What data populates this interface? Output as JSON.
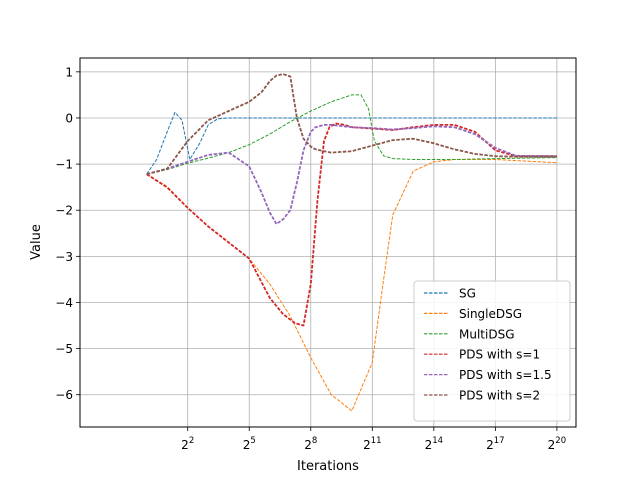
{
  "chart_data": {
    "type": "line",
    "title": "",
    "xlabel": "Iterations",
    "ylabel": "Value",
    "x_scale": "log2",
    "xlim": [
      0.105,
      2000000
    ],
    "ylim": [
      -6.7,
      1.3
    ],
    "x_ticks": [
      {
        "value": 4,
        "base": "2",
        "exp": "2"
      },
      {
        "value": 32,
        "base": "2",
        "exp": "5"
      },
      {
        "value": 256,
        "base": "2",
        "exp": "8"
      },
      {
        "value": 2048,
        "base": "2",
        "exp": "11"
      },
      {
        "value": 16384,
        "base": "2",
        "exp": "14"
      },
      {
        "value": 131072,
        "base": "2",
        "exp": "17"
      },
      {
        "value": 1048576,
        "base": "2",
        "exp": "20"
      }
    ],
    "y_ticks": [
      1,
      0,
      -1,
      -2,
      -3,
      -4,
      -5,
      -6
    ],
    "y_tick_labels": [
      "1",
      "0",
      "−1",
      "−2",
      "−3",
      "−4",
      "−5",
      "−6"
    ],
    "grid": true,
    "legend_position": "lower right",
    "series": [
      {
        "name": "SG",
        "color": "#1f77b4",
        "style": "dashed",
        "x": [
          1,
          1.4,
          2,
          2.6,
          3.3,
          4.3,
          6,
          8,
          11,
          16,
          32,
          128,
          1024,
          16384,
          131072,
          1048576
        ],
        "y": [
          -1.22,
          -0.9,
          -0.3,
          0.12,
          -0.05,
          -0.9,
          -0.55,
          -0.15,
          -0.02,
          0.0,
          0.0,
          0.0,
          0.0,
          0.0,
          0.0,
          0.0
        ]
      },
      {
        "name": "SingleDSG",
        "color": "#ff7f0e",
        "style": "dashed",
        "x": [
          1,
          2,
          4,
          8,
          16,
          32,
          64,
          128,
          256,
          512,
          1024,
          2048,
          3000,
          4096,
          8192,
          16384,
          32768,
          131072,
          1048576
        ],
        "y": [
          -1.22,
          -1.52,
          -1.95,
          -2.35,
          -2.7,
          -3.05,
          -3.6,
          -4.3,
          -5.2,
          -6.0,
          -6.35,
          -5.3,
          -3.5,
          -2.1,
          -1.15,
          -0.95,
          -0.9,
          -0.9,
          -0.97
        ]
      },
      {
        "name": "MultiDSG",
        "color": "#2ca02c",
        "style": "dashed",
        "x": [
          1,
          2,
          4,
          8,
          16,
          32,
          64,
          128,
          256,
          512,
          1024,
          1400,
          1800,
          2200,
          3000,
          4096,
          8192,
          16384,
          32768,
          131072,
          1048576
        ],
        "y": [
          -1.22,
          -1.12,
          -0.98,
          -0.87,
          -0.75,
          -0.58,
          -0.35,
          -0.08,
          0.15,
          0.35,
          0.5,
          0.5,
          0.2,
          -0.5,
          -0.82,
          -0.88,
          -0.9,
          -0.9,
          -0.9,
          -0.88,
          -0.86
        ]
      },
      {
        "name": "PDS with s=1",
        "color": "#d62728",
        "style": "dashed",
        "x": [
          1,
          2,
          4,
          8,
          16,
          32,
          64,
          100,
          150,
          200,
          256,
          320,
          400,
          480,
          600,
          800,
          1024,
          2048,
          4096,
          8192,
          16384,
          32768,
          65536,
          131072,
          262144,
          1048576
        ],
        "y": [
          -1.22,
          -1.5,
          -1.95,
          -2.35,
          -2.7,
          -3.05,
          -3.9,
          -4.25,
          -4.45,
          -4.5,
          -3.6,
          -1.8,
          -0.5,
          -0.2,
          -0.12,
          -0.15,
          -0.2,
          -0.23,
          -0.26,
          -0.2,
          -0.15,
          -0.15,
          -0.3,
          -0.7,
          -0.83,
          -0.83
        ]
      },
      {
        "name": "PDS with s=1.5",
        "color": "#9467bd",
        "style": "dashed",
        "x": [
          1,
          2,
          4,
          8,
          16,
          32,
          48,
          64,
          80,
          100,
          128,
          160,
          200,
          256,
          300,
          400,
          512,
          1024,
          2048,
          4096,
          8192,
          16384,
          32768,
          65536,
          131072,
          262144,
          1048576
        ],
        "y": [
          -1.22,
          -1.1,
          -0.95,
          -0.8,
          -0.75,
          -1.05,
          -1.6,
          -2.05,
          -2.3,
          -2.2,
          -2.0,
          -1.4,
          -0.7,
          -0.3,
          -0.2,
          -0.15,
          -0.15,
          -0.2,
          -0.22,
          -0.25,
          -0.22,
          -0.18,
          -0.2,
          -0.35,
          -0.65,
          -0.82,
          -0.83
        ]
      },
      {
        "name": "PDS with s=2",
        "color": "#8c564b",
        "style": "dashed",
        "x": [
          1,
          2,
          4,
          8,
          16,
          32,
          48,
          64,
          80,
          100,
          128,
          160,
          200,
          256,
          300,
          400,
          512,
          1024,
          2048,
          4096,
          8192,
          16384,
          32768,
          65536,
          131072,
          262144,
          1048576
        ],
        "y": [
          -1.22,
          -1.1,
          -0.5,
          -0.05,
          0.15,
          0.35,
          0.55,
          0.8,
          0.92,
          0.95,
          0.9,
          0.0,
          -0.45,
          -0.62,
          -0.68,
          -0.72,
          -0.75,
          -0.72,
          -0.6,
          -0.48,
          -0.45,
          -0.55,
          -0.68,
          -0.78,
          -0.83,
          -0.84,
          -0.84
        ]
      }
    ]
  }
}
